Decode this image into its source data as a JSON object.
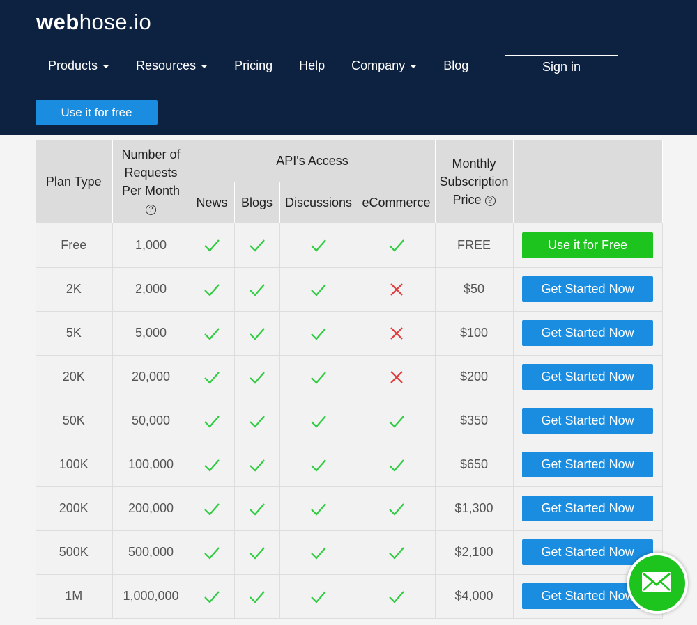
{
  "header": {
    "logo_bold": "web",
    "logo_rest": "hose.io",
    "nav": [
      "Products",
      "Resources",
      "Pricing",
      "Help",
      "Company",
      "Blog"
    ],
    "sign_in": "Sign in",
    "cta": "Use it for free"
  },
  "table": {
    "columns": {
      "plan": "Plan Type",
      "requests": "Number of Requests Per Month",
      "access": "API's Access",
      "sources": [
        "News",
        "Blogs",
        "Discussions",
        "eCommerce"
      ],
      "price": "Monthly Subscription Price"
    },
    "rows": [
      {
        "plan": "Free",
        "requests": "1,000",
        "access": [
          true,
          true,
          true,
          true
        ],
        "price": "FREE",
        "button": "Use it for Free"
      },
      {
        "plan": "2K",
        "requests": "2,000",
        "access": [
          true,
          true,
          true,
          false
        ],
        "price": "$50",
        "button": "Get Started Now"
      },
      {
        "plan": "5K",
        "requests": "5,000",
        "access": [
          true,
          true,
          true,
          false
        ],
        "price": "$100",
        "button": "Get Started Now"
      },
      {
        "plan": "20K",
        "requests": "20,000",
        "access": [
          true,
          true,
          true,
          false
        ],
        "price": "$200",
        "button": "Get Started Now"
      },
      {
        "plan": "50K",
        "requests": "50,000",
        "access": [
          true,
          true,
          true,
          true
        ],
        "price": "$350",
        "button": "Get Started Now"
      },
      {
        "plan": "100K",
        "requests": "100,000",
        "access": [
          true,
          true,
          true,
          true
        ],
        "price": "$650",
        "button": "Get Started Now"
      },
      {
        "plan": "200K",
        "requests": "200,000",
        "access": [
          true,
          true,
          true,
          true
        ],
        "price": "$1,300",
        "button": "Get Started Now"
      },
      {
        "plan": "500K",
        "requests": "500,000",
        "access": [
          true,
          true,
          true,
          true
        ],
        "price": "$2,100",
        "button": "Get Started Now"
      },
      {
        "plan": "1M",
        "requests": "1,000,000",
        "access": [
          true,
          true,
          true,
          true
        ],
        "price": "$4,000",
        "button": "Get Started Now"
      }
    ]
  }
}
